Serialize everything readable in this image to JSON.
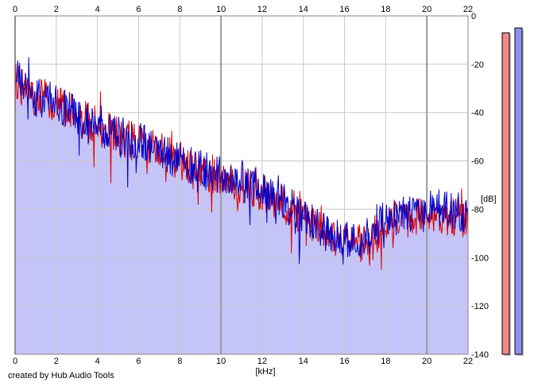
{
  "chart_data": {
    "type": "line",
    "xlabel": "[kHz]",
    "ylabel": "[dB]",
    "xlim": [
      0,
      22
    ],
    "ylim": [
      -140,
      0
    ],
    "x_ticks": [
      0,
      2,
      4,
      6,
      8,
      10,
      12,
      14,
      16,
      18,
      20,
      22
    ],
    "y_ticks": [
      0,
      -20,
      -40,
      -60,
      -80,
      -100,
      -120,
      -140
    ],
    "x_tick_labels": [
      "0",
      "2",
      "4",
      "6",
      "8",
      "10",
      "12",
      "14",
      "16",
      "18",
      "20",
      "22"
    ],
    "y_tick_labels": [
      "0",
      "-20",
      "-40",
      "-60",
      "-80",
      "-100",
      "-120",
      "-140"
    ],
    "grid": true,
    "series": [
      {
        "color": "#dd0000",
        "x": [
          0,
          0.5,
          1,
          1.5,
          2,
          3,
          4,
          5,
          6,
          7,
          8,
          9,
          10,
          11,
          12,
          13,
          14,
          15,
          16,
          17,
          18,
          19,
          20,
          21,
          22
        ],
        "values": [
          -26,
          -31,
          -35,
          -33,
          -37,
          -40,
          -45,
          -50,
          -53,
          -56,
          -60,
          -64,
          -67,
          -70,
          -73,
          -78,
          -84,
          -90,
          -94,
          -93,
          -85,
          -84,
          -82,
          -83,
          -84
        ]
      },
      {
        "color": "#0000cc",
        "x": [
          0,
          0.5,
          1,
          1.5,
          2,
          3,
          4,
          5,
          6,
          7,
          8,
          9,
          10,
          11,
          12,
          13,
          14,
          15,
          16,
          17,
          18,
          19,
          20,
          21,
          22
        ],
        "values": [
          -25,
          -30,
          -34,
          -34,
          -36,
          -40,
          -44,
          -49,
          -52,
          -56,
          -60,
          -63,
          -66,
          -69,
          -72,
          -77,
          -83,
          -89,
          -93,
          -92,
          -84,
          -82,
          -79,
          -80,
          -82
        ]
      }
    ],
    "fill_color": "#c4c4f8",
    "level_meters": [
      {
        "color": "#f08a8a",
        "level_db": -7
      },
      {
        "color": "#9090f0",
        "level_db": -5
      }
    ]
  },
  "footer": {
    "credit": "created by Hub Audio Tools"
  }
}
